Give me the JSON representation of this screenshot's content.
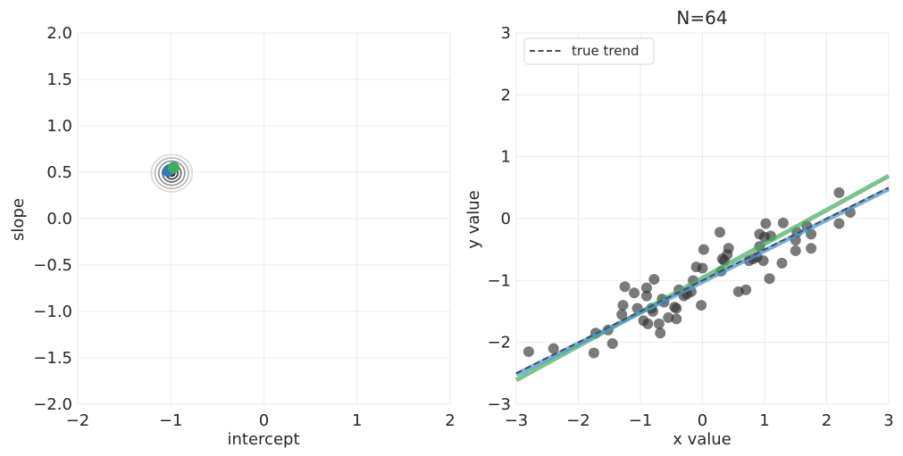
{
  "chart_data": [
    {
      "type": "contour",
      "title": "",
      "xlabel": "intercept",
      "ylabel": "slope",
      "xlim": [
        -2,
        2
      ],
      "ylim": [
        -2,
        2
      ],
      "xticks": [
        -2,
        -1,
        0,
        1,
        2
      ],
      "yticks": [
        -2.0,
        -1.5,
        -1.0,
        -0.5,
        0.0,
        0.5,
        1.0,
        1.5,
        2.0
      ],
      "xtick_labels": [
        "−2",
        "−1",
        "0",
        "1",
        "2"
      ],
      "ytick_labels": [
        "−2.0",
        "−1.5",
        "−1.0",
        "−0.5",
        "0.0",
        "0.5",
        "1.0",
        "1.5",
        "2.0"
      ],
      "grid": true,
      "contour_center": [
        -0.99,
        0.49
      ],
      "contour_levels": [
        {
          "rx": 0.22,
          "ry": 0.2,
          "color": "#dcdcdc"
        },
        {
          "rx": 0.18,
          "ry": 0.165,
          "color": "#bdbdbd"
        },
        {
          "rx": 0.14,
          "ry": 0.13,
          "color": "#999999"
        },
        {
          "rx": 0.1,
          "ry": 0.095,
          "color": "#6f6f6f"
        },
        {
          "rx": 0.065,
          "ry": 0.062,
          "color": "#444444"
        },
        {
          "rx": 0.032,
          "ry": 0.03,
          "color": "#111111"
        }
      ],
      "markers": [
        {
          "name": "estimate",
          "x": -1.03,
          "y": 0.51,
          "color": "#2c7fb8"
        },
        {
          "name": "true",
          "x": -0.97,
          "y": 0.55,
          "color": "#41ab5d"
        }
      ]
    },
    {
      "type": "scatter",
      "title": "N=64",
      "xlabel": "x value",
      "ylabel": "y value",
      "xlim": [
        -3,
        3
      ],
      "ylim": [
        -3,
        3
      ],
      "xticks": [
        -3,
        -2,
        -1,
        0,
        1,
        2,
        3
      ],
      "yticks": [
        -3,
        -2,
        -1,
        0,
        1,
        2,
        3
      ],
      "xtick_labels": [
        "−3",
        "−2",
        "−1",
        "0",
        "1",
        "2",
        "3"
      ],
      "ytick_labels": [
        "−3",
        "−2",
        "−1",
        "0",
        "1",
        "2",
        "3"
      ],
      "grid": true,
      "legend": {
        "position": "top-left",
        "entries": [
          "true trend"
        ]
      },
      "lines": [
        {
          "name": "green fit",
          "intercept": -0.96,
          "slope": 0.55,
          "color": "#41ab5d",
          "style": "solid",
          "opacity": 0.7
        },
        {
          "name": "blue fit",
          "intercept": -1.02,
          "slope": 0.5,
          "color": "#4a98d8",
          "style": "solid",
          "opacity": 0.75
        },
        {
          "name": "true trend",
          "intercept": -1.0,
          "slope": 0.5,
          "color": "#4d4d4d",
          "style": "dashed",
          "opacity": 1
        }
      ],
      "points": [
        [
          -2.8,
          -2.15
        ],
        [
          -2.4,
          -2.1
        ],
        [
          -1.75,
          -2.17
        ],
        [
          -1.72,
          -1.85
        ],
        [
          -1.52,
          -1.8
        ],
        [
          -1.45,
          -2.02
        ],
        [
          -1.3,
          -1.55
        ],
        [
          -1.28,
          -1.4
        ],
        [
          -1.25,
          -1.1
        ],
        [
          -1.1,
          -1.2
        ],
        [
          -1.05,
          -1.45
        ],
        [
          -0.95,
          -1.65
        ],
        [
          -0.9,
          -1.25
        ],
        [
          -0.9,
          -1.12
        ],
        [
          -0.88,
          -1.7
        ],
        [
          -0.82,
          -1.45
        ],
        [
          -0.8,
          -1.5
        ],
        [
          -0.78,
          -0.98
        ],
        [
          -0.7,
          -1.7
        ],
        [
          -0.68,
          -1.85
        ],
        [
          -0.65,
          -1.3
        ],
        [
          -0.62,
          -1.35
        ],
        [
          -0.55,
          -1.6
        ],
        [
          -0.45,
          -1.43
        ],
        [
          -0.42,
          -1.45
        ],
        [
          -0.42,
          -1.62
        ],
        [
          -0.38,
          -1.15
        ],
        [
          -0.3,
          -1.25
        ],
        [
          -0.25,
          -1.22
        ],
        [
          -0.18,
          -1.18
        ],
        [
          -0.15,
          -1.0
        ],
        [
          -0.1,
          -0.78
        ],
        [
          -0.02,
          -1.4
        ],
        [
          0.0,
          -0.8
        ],
        [
          0.02,
          -0.5
        ],
        [
          0.28,
          -0.22
        ],
        [
          0.3,
          -0.85
        ],
        [
          0.32,
          -0.65
        ],
        [
          0.35,
          -0.68
        ],
        [
          0.4,
          -0.58
        ],
        [
          0.42,
          -0.48
        ],
        [
          0.58,
          -1.18
        ],
        [
          0.7,
          -1.15
        ],
        [
          0.75,
          -0.68
        ],
        [
          0.82,
          -0.65
        ],
        [
          0.88,
          -0.62
        ],
        [
          0.92,
          -0.25
        ],
        [
          0.92,
          -0.45
        ],
        [
          0.98,
          -0.68
        ],
        [
          1.0,
          -0.3
        ],
        [
          1.02,
          -0.08
        ],
        [
          1.08,
          -0.97
        ],
        [
          1.1,
          -0.28
        ],
        [
          1.28,
          -0.72
        ],
        [
          1.3,
          -0.07
        ],
        [
          1.5,
          -0.52
        ],
        [
          1.5,
          -0.35
        ],
        [
          1.52,
          -0.22
        ],
        [
          1.68,
          -0.12
        ],
        [
          1.75,
          -0.25
        ],
        [
          1.75,
          -0.48
        ],
        [
          2.2,
          0.42
        ],
        [
          2.2,
          -0.08
        ],
        [
          2.38,
          0.1
        ]
      ]
    }
  ]
}
